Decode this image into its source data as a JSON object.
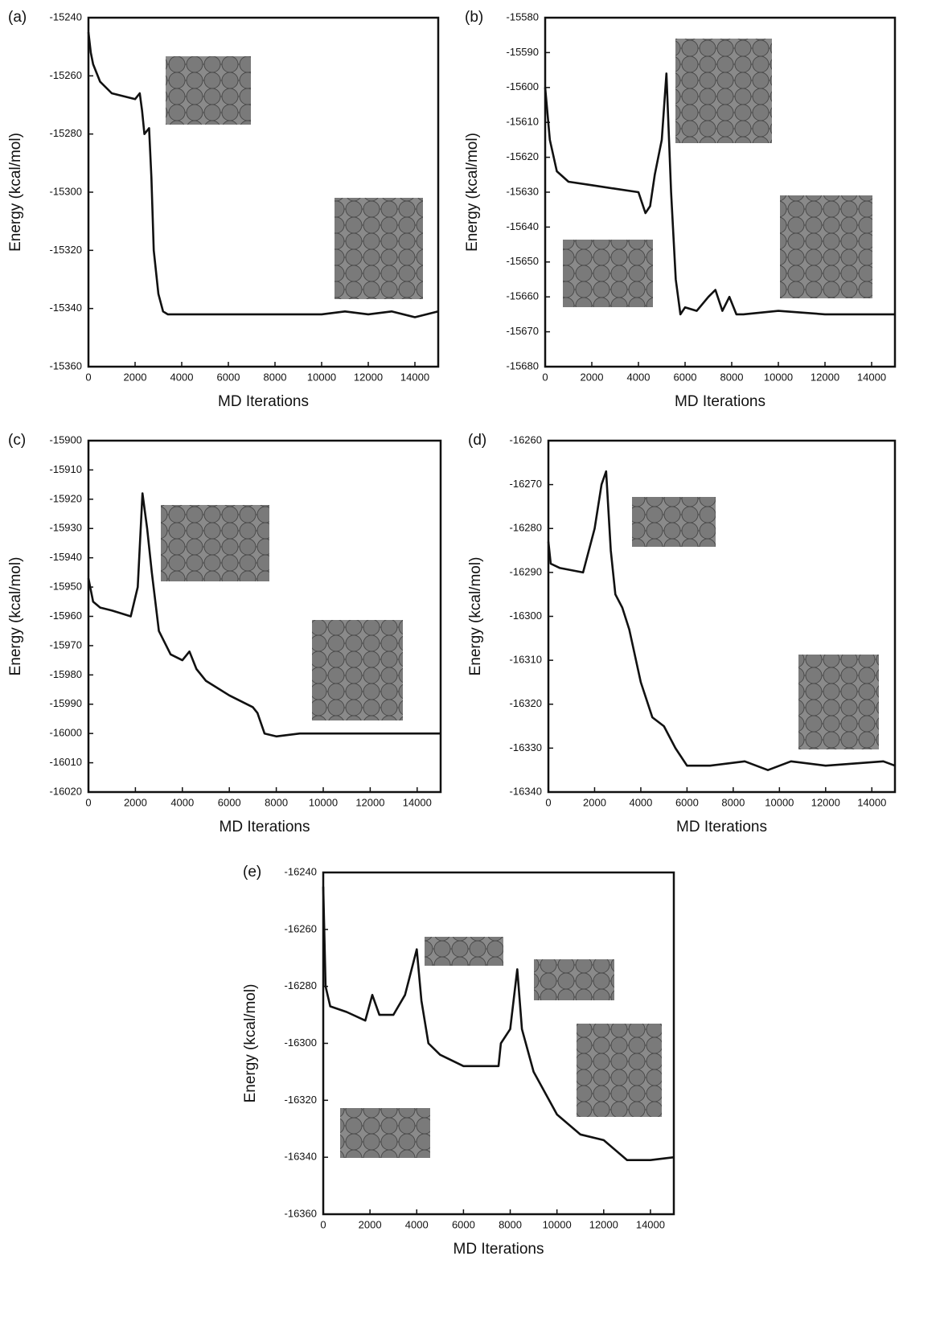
{
  "chart_data": [
    {
      "type": "line",
      "panel": "(a)",
      "xlabel": "MD Iterations",
      "ylabel": "Energy (kcal/mol)",
      "color": "#111111",
      "x": [
        0,
        100,
        200,
        500,
        1000,
        1500,
        2000,
        2200,
        2300,
        2400,
        2600,
        2700,
        2800,
        3000,
        3200,
        3400,
        4000,
        6000,
        8000,
        10000,
        11000,
        12000,
        13000,
        14000,
        15000
      ],
      "values": [
        -15245,
        -15252,
        -15256,
        -15262,
        -15266,
        -15267,
        -15268,
        -15266,
        -15272,
        -15280,
        -15278,
        -15295,
        -15320,
        -15335,
        -15341,
        -15342,
        -15342,
        -15342,
        -15342,
        -15342,
        -15341,
        -15342,
        -15341,
        -15343,
        -15341
      ],
      "xlim": [
        0,
        15000
      ],
      "xticks": [
        0,
        2000,
        4000,
        6000,
        8000,
        10000,
        12000,
        14000
      ],
      "ylim": [
        -15360,
        -15240
      ],
      "yticks": [
        -15360,
        -15340,
        -15320,
        -15300,
        -15280,
        -15260,
        -15240
      ]
    },
    {
      "type": "line",
      "panel": "(b)",
      "xlabel": "MD Iterations",
      "ylabel": "Energy (kcal/mol)",
      "color": "#111111",
      "x": [
        0,
        200,
        500,
        1000,
        2000,
        3000,
        4000,
        4300,
        4500,
        4700,
        5000,
        5200,
        5400,
        5600,
        5800,
        6000,
        6500,
        7000,
        7300,
        7600,
        7900,
        8200,
        8500,
        10000,
        12000,
        15000
      ],
      "values": [
        -15600,
        -15615,
        -15624,
        -15627,
        -15628,
        -15629,
        -15630,
        -15636,
        -15634,
        -15625,
        -15615,
        -15596,
        -15630,
        -15655,
        -15665,
        -15663,
        -15664,
        -15660,
        -15658,
        -15664,
        -15660,
        -15665,
        -15665,
        -15664,
        -15665,
        -15665
      ],
      "xlim": [
        0,
        15000
      ],
      "xticks": [
        0,
        2000,
        4000,
        6000,
        8000,
        10000,
        12000,
        14000
      ],
      "ylim": [
        -15680,
        -15580
      ],
      "yticks": [
        -15680,
        -15670,
        -15660,
        -15650,
        -15640,
        -15630,
        -15620,
        -15610,
        -15600,
        -15590,
        -15580
      ]
    },
    {
      "type": "line",
      "panel": "(c)",
      "xlabel": "MD Iterations",
      "ylabel": "Energy (kcal/mol)",
      "color": "#111111",
      "x": [
        0,
        200,
        500,
        1000,
        1800,
        2100,
        2300,
        2500,
        2700,
        3000,
        3500,
        4000,
        4300,
        4600,
        5000,
        6000,
        7000,
        7200,
        7500,
        8000,
        9000,
        10000,
        12000,
        15000
      ],
      "values": [
        -15947,
        -15955,
        -15957,
        -15958,
        -15960,
        -15950,
        -15918,
        -15930,
        -15945,
        -15965,
        -15973,
        -15975,
        -15972,
        -15978,
        -15982,
        -15987,
        -15991,
        -15993,
        -16000,
        -16001,
        -16000,
        -16000,
        -16000,
        -16000
      ],
      "xlim": [
        0,
        15000
      ],
      "xticks": [
        0,
        2000,
        4000,
        6000,
        8000,
        10000,
        12000,
        14000
      ],
      "ylim": [
        -16020,
        -15900
      ],
      "yticks": [
        -16020,
        -16010,
        -16000,
        -15990,
        -15980,
        -15970,
        -15960,
        -15950,
        -15940,
        -15930,
        -15920,
        -15910,
        -15900
      ]
    },
    {
      "type": "line",
      "panel": "(d)",
      "xlabel": "MD Iterations",
      "ylabel": "Energy (kcal/mol)",
      "color": "#111111",
      "x": [
        0,
        100,
        500,
        1500,
        2000,
        2300,
        2500,
        2700,
        2900,
        3200,
        3500,
        4000,
        4500,
        5000,
        5500,
        6000,
        7000,
        8500,
        9500,
        10500,
        12000,
        14500,
        15000
      ],
      "values": [
        -16283,
        -16288,
        -16289,
        -16290,
        -16280,
        -16270,
        -16267,
        -16285,
        -16295,
        -16298,
        -16303,
        -16315,
        -16323,
        -16325,
        -16330,
        -16334,
        -16334,
        -16333,
        -16335,
        -16333,
        -16334,
        -16333,
        -16334
      ],
      "xlim": [
        0,
        15000
      ],
      "xticks": [
        0,
        2000,
        4000,
        6000,
        8000,
        10000,
        12000,
        14000
      ],
      "ylim": [
        -16340,
        -16260
      ],
      "yticks": [
        -16340,
        -16330,
        -16320,
        -16310,
        -16300,
        -16290,
        -16280,
        -16270,
        -16260
      ]
    },
    {
      "type": "line",
      "panel": "(e)",
      "xlabel": "MD Iterations",
      "ylabel": "Energy (kcal/mol)",
      "color": "#111111",
      "x": [
        0,
        100,
        300,
        1000,
        1800,
        2100,
        2400,
        3000,
        3500,
        4000,
        4200,
        4500,
        5000,
        6000,
        7000,
        7500,
        7600,
        8000,
        8300,
        8500,
        9000,
        10000,
        11000,
        12000,
        13000,
        14000,
        15000
      ],
      "values": [
        -16245,
        -16280,
        -16287,
        -16289,
        -16292,
        -16283,
        -16290,
        -16290,
        -16283,
        -16267,
        -16285,
        -16300,
        -16304,
        -16308,
        -16308,
        -16308,
        -16300,
        -16295,
        -16274,
        -16295,
        -16310,
        -16325,
        -16332,
        -16334,
        -16341,
        -16341,
        -16340
      ],
      "xlim": [
        0,
        15000
      ],
      "xticks": [
        0,
        2000,
        4000,
        6000,
        8000,
        10000,
        12000,
        14000
      ],
      "ylim": [
        -16360,
        -16240
      ],
      "yticks": [
        -16360,
        -16340,
        -16320,
        -16300,
        -16280,
        -16260,
        -16240
      ]
    }
  ]
}
